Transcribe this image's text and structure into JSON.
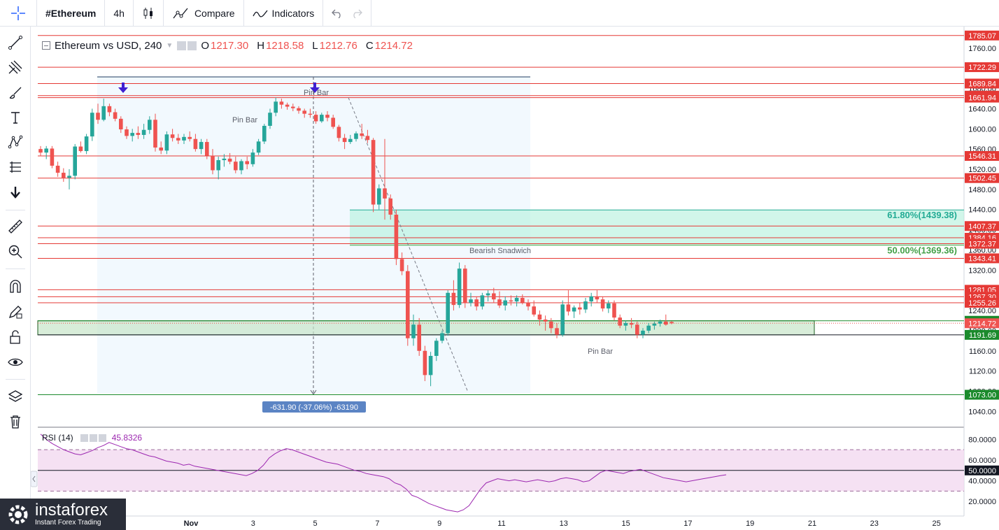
{
  "toolbar": {
    "symbol": "#Ethereum",
    "interval": "4h",
    "compare_label": "Compare",
    "indicators_label": "Indicators"
  },
  "legend": {
    "title": "Ethereum vs USD, 240",
    "o_label": "O",
    "o_value": "1217.30",
    "h_label": "H",
    "h_value": "1218.58",
    "l_label": "L",
    "l_value": "1212.76",
    "c_label": "C",
    "c_value": "1214.72"
  },
  "rsi": {
    "title": "RSI (14)",
    "value": "45.8326"
  },
  "logo": {
    "name": "instaforex",
    "tagline": "Instant Forex Trading"
  },
  "colors": {
    "up": "#26a69a",
    "down": "#ef5350",
    "level": "#e53935",
    "rsi": "#9c27b0",
    "fib": "#00c896",
    "support": "#1b8a2c"
  },
  "chart_data": {
    "type": "candlestick",
    "y_axis_ticks": [
      "1760.00",
      "1720.00",
      "1680.00",
      "1640.00",
      "1600.00",
      "1560.00",
      "1520.00",
      "1480.00",
      "1440.00",
      "1400.00",
      "1360.00",
      "1320.00",
      "1280.00",
      "1240.00",
      "1200.00",
      "1160.00",
      "1120.00",
      "1080.00",
      "1040.00"
    ],
    "x_axis_labels": [
      "Nov",
      "3",
      "5",
      "7",
      "9",
      "11",
      "13",
      "15",
      "17",
      "19",
      "21",
      "23",
      "25"
    ],
    "x_axis_values": [
      1,
      3,
      5,
      7,
      9,
      11,
      13,
      15,
      17,
      19,
      21,
      23,
      25
    ],
    "resistance_levels": [
      "1785.07",
      "1722.29",
      "1689.84",
      "1665.84",
      "1661.94",
      "1546.31",
      "1502.45",
      "1407.37",
      "1384.16",
      "1372.37",
      "1343.41",
      "1281.05",
      "1267.30",
      "1255.26"
    ],
    "support_levels": [
      "1219.62",
      "1191.69",
      "1073.00"
    ],
    "current_price": "1214.72",
    "fib_levels": [
      {
        "label": "61.80%(1439.38)",
        "price": 1439.38
      },
      {
        "label": "50.00%(1369.36)",
        "price": 1369.36
      }
    ],
    "annotations": [
      "Pin Bar",
      "Pin Bar",
      "Bearish Snadwich",
      "Pin Bar"
    ],
    "measure_label": "-631.90 (-37.06%) -63190",
    "rsi_ticks": [
      "80.0000",
      "60.0000",
      "40.0000",
      "20.0000"
    ],
    "rsi_level": "50.0000",
    "rsi_bands": [
      70,
      30
    ],
    "price_range": [
      1010,
      1800
    ],
    "rsi_range": [
      6,
      91
    ],
    "candles": [
      [
        1560,
        1566,
        1546,
        1553
      ],
      [
        1553,
        1566,
        1540,
        1561
      ],
      [
        1561,
        1566,
        1522,
        1527
      ],
      [
        1527,
        1535,
        1505,
        1513
      ],
      [
        1513,
        1522,
        1495,
        1503
      ],
      [
        1503,
        1520,
        1480,
        1507
      ],
      [
        1507,
        1570,
        1500,
        1565
      ],
      [
        1565,
        1575,
        1553,
        1556
      ],
      [
        1556,
        1590,
        1550,
        1585
      ],
      [
        1585,
        1640,
        1576,
        1632
      ],
      [
        1632,
        1650,
        1610,
        1618
      ],
      [
        1618,
        1660,
        1615,
        1645
      ],
      [
        1645,
        1650,
        1625,
        1633
      ],
      [
        1633,
        1640,
        1615,
        1620
      ],
      [
        1620,
        1625,
        1592,
        1599
      ],
      [
        1599,
        1605,
        1580,
        1586
      ],
      [
        1586,
        1600,
        1575,
        1592
      ],
      [
        1592,
        1605,
        1580,
        1588
      ],
      [
        1588,
        1610,
        1580,
        1598
      ],
      [
        1598,
        1625,
        1590,
        1618
      ],
      [
        1618,
        1630,
        1555,
        1563
      ],
      [
        1563,
        1575,
        1550,
        1557
      ],
      [
        1557,
        1595,
        1550,
        1589
      ],
      [
        1589,
        1600,
        1575,
        1582
      ],
      [
        1582,
        1590,
        1570,
        1577
      ],
      [
        1577,
        1590,
        1570,
        1584
      ],
      [
        1584,
        1595,
        1575,
        1580
      ],
      [
        1580,
        1590,
        1555,
        1560
      ],
      [
        1560,
        1580,
        1550,
        1574
      ],
      [
        1574,
        1580,
        1540,
        1547
      ],
      [
        1547,
        1560,
        1510,
        1518
      ],
      [
        1518,
        1545,
        1500,
        1538
      ],
      [
        1538,
        1550,
        1525,
        1541
      ],
      [
        1541,
        1552,
        1530,
        1535
      ],
      [
        1535,
        1545,
        1512,
        1518
      ],
      [
        1518,
        1540,
        1510,
        1536
      ],
      [
        1536,
        1545,
        1520,
        1530
      ],
      [
        1530,
        1560,
        1525,
        1553
      ],
      [
        1553,
        1580,
        1548,
        1575
      ],
      [
        1575,
        1610,
        1570,
        1606
      ],
      [
        1606,
        1640,
        1600,
        1632
      ],
      [
        1632,
        1662,
        1625,
        1654
      ],
      [
        1654,
        1660,
        1640,
        1648
      ],
      [
        1648,
        1652,
        1638,
        1644
      ],
      [
        1644,
        1650,
        1635,
        1641
      ],
      [
        1641,
        1645,
        1630,
        1636
      ],
      [
        1636,
        1640,
        1622,
        1630
      ],
      [
        1630,
        1640,
        1622,
        1628
      ],
      [
        1628,
        1635,
        1610,
        1615
      ],
      [
        1615,
        1632,
        1612,
        1628
      ],
      [
        1628,
        1635,
        1615,
        1622
      ],
      [
        1622,
        1628,
        1600,
        1604
      ],
      [
        1604,
        1608,
        1575,
        1582
      ],
      [
        1582,
        1590,
        1560,
        1574
      ],
      [
        1574,
        1588,
        1570,
        1580
      ],
      [
        1580,
        1595,
        1575,
        1591
      ],
      [
        1591,
        1610,
        1580,
        1586
      ],
      [
        1586,
        1598,
        1572,
        1578
      ],
      [
        1578,
        1582,
        1435,
        1450
      ],
      [
        1450,
        1490,
        1440,
        1482
      ],
      [
        1482,
        1580,
        1420,
        1462
      ],
      [
        1462,
        1470,
        1420,
        1430
      ],
      [
        1430,
        1440,
        1330,
        1342
      ],
      [
        1342,
        1355,
        1310,
        1318
      ],
      [
        1318,
        1330,
        1170,
        1185
      ],
      [
        1185,
        1232,
        1170,
        1212
      ],
      [
        1212,
        1225,
        1150,
        1160
      ],
      [
        1160,
        1170,
        1100,
        1112
      ],
      [
        1112,
        1158,
        1090,
        1150
      ],
      [
        1150,
        1185,
        1140,
        1180
      ],
      [
        1180,
        1200,
        1175,
        1195
      ],
      [
        1195,
        1280,
        1190,
        1275
      ],
      [
        1275,
        1300,
        1240,
        1251
      ],
      [
        1251,
        1335,
        1245,
        1323
      ],
      [
        1323,
        1330,
        1245,
        1255
      ],
      [
        1255,
        1275,
        1248,
        1262
      ],
      [
        1262,
        1268,
        1240,
        1248
      ],
      [
        1248,
        1275,
        1242,
        1270
      ],
      [
        1270,
        1280,
        1258,
        1274
      ],
      [
        1274,
        1285,
        1255,
        1262
      ],
      [
        1262,
        1278,
        1245,
        1250
      ],
      [
        1250,
        1268,
        1240,
        1260
      ],
      [
        1260,
        1270,
        1250,
        1258
      ],
      [
        1258,
        1270,
        1248,
        1265
      ],
      [
        1265,
        1272,
        1252,
        1256
      ],
      [
        1256,
        1262,
        1240,
        1248
      ],
      [
        1248,
        1260,
        1228,
        1232
      ],
      [
        1232,
        1240,
        1210,
        1222
      ],
      [
        1222,
        1230,
        1200,
        1218
      ],
      [
        1218,
        1225,
        1195,
        1205
      ],
      [
        1205,
        1215,
        1185,
        1192
      ],
      [
        1192,
        1260,
        1188,
        1252
      ],
      [
        1252,
        1280,
        1230,
        1238
      ],
      [
        1238,
        1250,
        1225,
        1246
      ],
      [
        1246,
        1255,
        1232,
        1242
      ],
      [
        1242,
        1265,
        1235,
        1258
      ],
      [
        1258,
        1275,
        1248,
        1268
      ],
      [
        1268,
        1280,
        1255,
        1262
      ],
      [
        1262,
        1268,
        1238,
        1244
      ],
      [
        1244,
        1260,
        1235,
        1254
      ],
      [
        1254,
        1260,
        1220,
        1226
      ],
      [
        1226,
        1232,
        1205,
        1210
      ],
      [
        1210,
        1220,
        1200,
        1215
      ],
      [
        1215,
        1225,
        1205,
        1212
      ],
      [
        1212,
        1218,
        1185,
        1192
      ],
      [
        1192,
        1205,
        1185,
        1200
      ],
      [
        1200,
        1215,
        1195,
        1210
      ],
      [
        1210,
        1218,
        1202,
        1214
      ],
      [
        1214,
        1222,
        1208,
        1218
      ],
      [
        1218,
        1232,
        1210,
        1212
      ],
      [
        1217.3,
        1218.58,
        1212.76,
        1214.72
      ]
    ],
    "rsi_values": [
      85,
      80,
      76,
      73,
      70,
      68,
      66,
      65,
      67,
      69,
      72,
      74,
      77,
      75,
      73,
      71,
      70,
      68,
      66,
      64,
      63,
      61,
      59,
      58,
      57,
      55,
      56,
      54,
      53,
      52,
      51,
      50,
      49,
      48,
      47,
      46,
      45,
      47,
      50,
      55,
      62,
      66,
      69,
      71,
      70,
      68,
      66,
      64,
      62,
      60,
      58,
      57,
      56,
      54,
      52,
      50,
      49,
      47,
      46,
      45,
      44,
      42,
      38,
      36,
      32,
      26,
      24,
      21,
      18,
      16,
      14,
      12,
      11,
      10,
      12,
      16,
      24,
      32,
      38,
      40,
      42,
      41,
      40,
      41,
      40,
      39,
      40,
      41,
      40,
      39,
      40,
      42,
      43,
      42,
      41,
      39,
      40,
      44,
      48,
      50,
      49,
      48,
      47,
      49,
      50,
      51,
      49,
      47,
      45,
      43,
      42,
      41,
      40,
      39,
      40,
      41,
      42,
      43,
      44,
      45,
      45.83
    ]
  }
}
